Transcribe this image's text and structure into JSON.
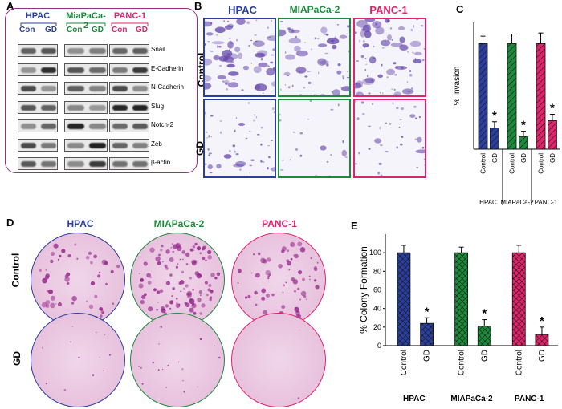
{
  "panels": {
    "a": "A",
    "b": "B",
    "c": "C",
    "d": "D",
    "e": "E"
  },
  "cell_lines": [
    "HPAC",
    "MIAPaCa-2",
    "PANC-1"
  ],
  "colors": {
    "hpac": "#2b3f9c",
    "miapaca": "#1c8a3a",
    "panc": "#e0246b",
    "frame_a": "#9b2e82"
  },
  "panel_a": {
    "headers": [
      "HPAC",
      "MiaPaCa-2",
      "PANC-1"
    ],
    "lane_labels": [
      [
        "Con",
        "GD"
      ],
      [
        "Con",
        "GD"
      ],
      [
        "Con",
        "GD"
      ]
    ],
    "proteins": [
      "Snail",
      "E-Cadherin",
      "N-Cadherin",
      "Slug",
      "Notch-2",
      "Zeb",
      "β-actin"
    ]
  },
  "panel_b": {
    "row_labels": [
      "Control",
      "GD"
    ]
  },
  "panel_d": {
    "row_labels": [
      "Control",
      "GD"
    ]
  },
  "chart_data": [
    {
      "type": "bar",
      "panel": "C",
      "ylabel": "% Invasion",
      "ylim": [
        0,
        120
      ],
      "group_labels": [
        "HPAC",
        "MIAPaCa-2",
        "PANC-1"
      ],
      "bar_labels": [
        "Control",
        "GD"
      ],
      "values": [
        [
          100,
          20
        ],
        [
          100,
          12
        ],
        [
          100,
          27
        ]
      ],
      "errors": [
        [
          7,
          6
        ],
        [
          9,
          5
        ],
        [
          10,
          6
        ]
      ],
      "significance": [
        "",
        "*",
        "",
        "*",
        "",
        "*"
      ]
    },
    {
      "type": "bar",
      "panel": "E",
      "ylabel": "% Colony Formation",
      "ylim": [
        0,
        120
      ],
      "yticks": [
        0,
        20,
        40,
        60,
        80,
        100
      ],
      "group_labels": [
        "HPAC",
        "MIAPaCa-2",
        "PANC-1"
      ],
      "bar_labels": [
        "Control",
        "GD"
      ],
      "values": [
        [
          100,
          24
        ],
        [
          100,
          21
        ],
        [
          100,
          12
        ]
      ],
      "errors": [
        [
          8,
          6
        ],
        [
          6,
          7
        ],
        [
          8,
          8
        ]
      ],
      "significance": [
        "",
        "*",
        "",
        "*",
        "",
        "*"
      ]
    }
  ]
}
